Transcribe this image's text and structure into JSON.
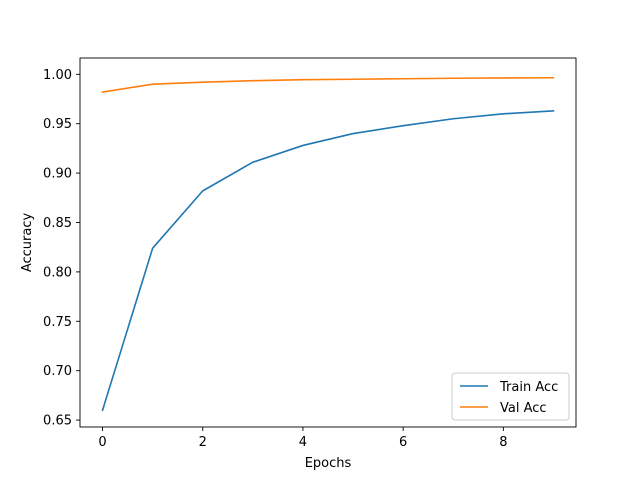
{
  "chart_data": {
    "type": "line",
    "title": "",
    "xlabel": "Epochs",
    "ylabel": "Accuracy",
    "xlim": [
      -0.45,
      9.45
    ],
    "ylim": [
      0.643,
      1.0165
    ],
    "xticks": [
      0,
      2,
      4,
      6,
      8
    ],
    "yticks": [
      0.65,
      0.7,
      0.75,
      0.8,
      0.85,
      0.9,
      0.95,
      1.0
    ],
    "ytick_labels": [
      "0.65",
      "0.70",
      "0.75",
      "0.80",
      "0.85",
      "0.90",
      "0.95",
      "1.00"
    ],
    "grid": false,
    "legend": "lower-right",
    "x": [
      0,
      1,
      2,
      3,
      4,
      5,
      6,
      7,
      8,
      9
    ],
    "series": [
      {
        "name": "Train Acc",
        "color": "#1f77b4",
        "values": [
          0.66,
          0.824,
          0.882,
          0.911,
          0.928,
          0.94,
          0.948,
          0.955,
          0.96,
          0.963
        ]
      },
      {
        "name": "Val Acc",
        "color": "#ff7f0e",
        "values": [
          0.982,
          0.99,
          0.992,
          0.9935,
          0.9945,
          0.995,
          0.9955,
          0.996,
          0.9963,
          0.9965
        ]
      }
    ]
  }
}
